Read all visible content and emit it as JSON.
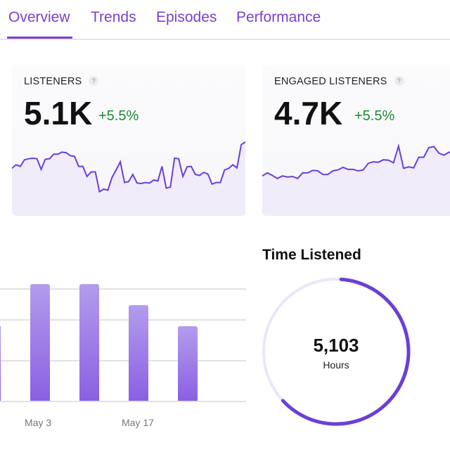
{
  "tabs": [
    {
      "label": "Overview"
    },
    {
      "label": "Trends"
    },
    {
      "label": "Episodes"
    },
    {
      "label": "Performance"
    }
  ],
  "accent": "#7a3fd0",
  "cards": [
    {
      "label": "LISTENERS",
      "help": "?",
      "value": "5.1K",
      "change": "+5.5%",
      "spark": [
        48,
        55,
        52,
        65,
        67,
        68,
        67,
        46,
        66,
        67,
        76,
        76,
        80,
        79,
        73,
        72,
        52,
        52,
        32,
        41,
        41,
        2,
        7,
        5,
        30,
        45,
        61,
        20,
        22,
        36,
        19,
        18,
        20,
        19,
        25,
        23,
        52,
        9,
        11,
        68,
        67,
        32,
        51,
        52,
        36,
        34,
        40,
        37,
        17,
        20,
        20,
        45,
        48,
        55,
        49,
        95,
        100
      ]
    },
    {
      "label": "ENGAGED LISTENERS",
      "help": "?",
      "value": "4.7K",
      "change": "+5.5%",
      "spark": [
        33,
        39,
        34,
        28,
        33,
        31,
        32,
        28,
        39,
        39,
        44,
        43,
        36,
        36,
        43,
        45,
        50,
        46,
        46,
        43,
        45,
        58,
        61,
        60,
        65,
        64,
        59,
        92,
        48,
        51,
        49,
        70,
        70,
        89,
        91,
        78,
        74,
        80,
        77,
        70
      ]
    }
  ],
  "chart_data": {
    "type": "bar",
    "values": [
      1.86,
      2.86,
      2.86,
      2.35,
      1.83
    ],
    "xticks": [
      "May 3",
      "May 17"
    ],
    "ylim": [
      0,
      3
    ]
  },
  "time_listened": {
    "title": "Time Listened",
    "value": "5,103",
    "unit": "Hours",
    "progress": 0.62
  }
}
